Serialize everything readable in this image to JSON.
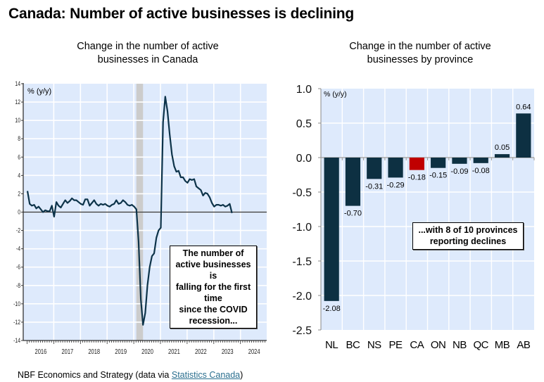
{
  "page": {
    "title": "Canada: Number of active businesses is declining",
    "footer_text": "NBF Economics and Strategy (data via ",
    "footer_link": "Statistics Canada",
    "footer_end": ")"
  },
  "chart_data": [
    {
      "type": "line",
      "title": "Change in the number of active businesses in Canada",
      "title_line1": "Change in the number of active",
      "title_line2": "businesses in Canada",
      "ylabel": "% (y/y)",
      "ylim": [
        -14,
        14
      ],
      "yticks": [
        14,
        12,
        10,
        8,
        6,
        4,
        2,
        0,
        -2,
        -4,
        -6,
        -8,
        -10,
        -12,
        -14
      ],
      "xlim": [
        "2016-01",
        "2024-12"
      ],
      "xtick_labels": [
        "2016",
        "2017",
        "2018",
        "2019",
        "2020",
        "2021",
        "2022",
        "2023",
        "2024"
      ],
      "grid": true,
      "recession_shading": {
        "start": "2020-02",
        "end": "2020-04"
      },
      "line_color": "#0d3349",
      "annotation": [
        "The number of",
        "active businesses",
        "is",
        "falling for the first",
        "time",
        "since the COVID",
        "recession..."
      ],
      "series": [
        {
          "name": "Active businesses % (y/y)",
          "start": "2016-01",
          "values": [
            2.3,
            0.9,
            0.7,
            0.8,
            0.4,
            0.6,
            0.3,
            0.0,
            0.2,
            0.1,
            0.1,
            0.7,
            -0.5,
            1.1,
            0.7,
            0.5,
            0.9,
            1.3,
            1.0,
            1.2,
            1.5,
            1.3,
            1.3,
            1.1,
            0.9,
            0.8,
            1.4,
            1.4,
            0.7,
            1.0,
            1.3,
            0.9,
            0.7,
            0.9,
            0.8,
            0.9,
            0.7,
            0.6,
            0.8,
            0.9,
            1.3,
            0.9,
            1.0,
            1.3,
            1.1,
            0.8,
            0.7,
            0.8,
            0.6,
            0.3,
            -3.2,
            -9.5,
            -12.3,
            -11.0,
            -8.0,
            -6.0,
            -4.8,
            -4.5,
            -2.8,
            -2.0,
            -1.7,
            9.8,
            12.6,
            11.0,
            8.5,
            6.3,
            5.0,
            4.4,
            4.5,
            3.8,
            3.8,
            3.4,
            3.2,
            3.6,
            3.5,
            3.6,
            2.8,
            2.6,
            2.4,
            1.8,
            2.1,
            2.0,
            1.6,
            1.0,
            0.6,
            0.8,
            0.8,
            0.7,
            0.8,
            0.6,
            0.7,
            0.9,
            -0.1
          ]
        }
      ]
    },
    {
      "type": "bar",
      "title": "Change in the number of active businesses by province",
      "title_line1": "Change in the number of active",
      "title_line2": "businesses by province",
      "ylabel": "% (y/y)",
      "ylim": [
        -2.5,
        1.0
      ],
      "yticks": [
        "1.0",
        "0.5",
        "0.0",
        "-0.5",
        "-1.0",
        "-1.5",
        "-2.0",
        "-2.5"
      ],
      "grid": true,
      "categories": [
        "NL",
        "BC",
        "NS",
        "PE",
        "CA",
        "ON",
        "NB",
        "QC",
        "MB",
        "AB"
      ],
      "values": [
        -2.08,
        -0.7,
        -0.31,
        -0.29,
        -0.18,
        -0.15,
        -0.09,
        -0.08,
        0.05,
        0.64
      ],
      "value_labels": [
        "-2.08",
        "-0.70",
        "-0.31",
        "-0.29",
        "-0.18",
        "-0.15",
        "-0.09",
        "-0.08",
        "0.05",
        "0.64"
      ],
      "bar_color": "#0d3042",
      "highlight_category": "CA",
      "highlight_color": "#c00000",
      "annotation": [
        "...with 8 of 10 provinces",
        "reporting declines"
      ]
    }
  ],
  "colors": {
    "plot_bg": "#deeafc",
    "grid": "#ffffff",
    "recession": "#cccccc",
    "axis": "#333333"
  }
}
